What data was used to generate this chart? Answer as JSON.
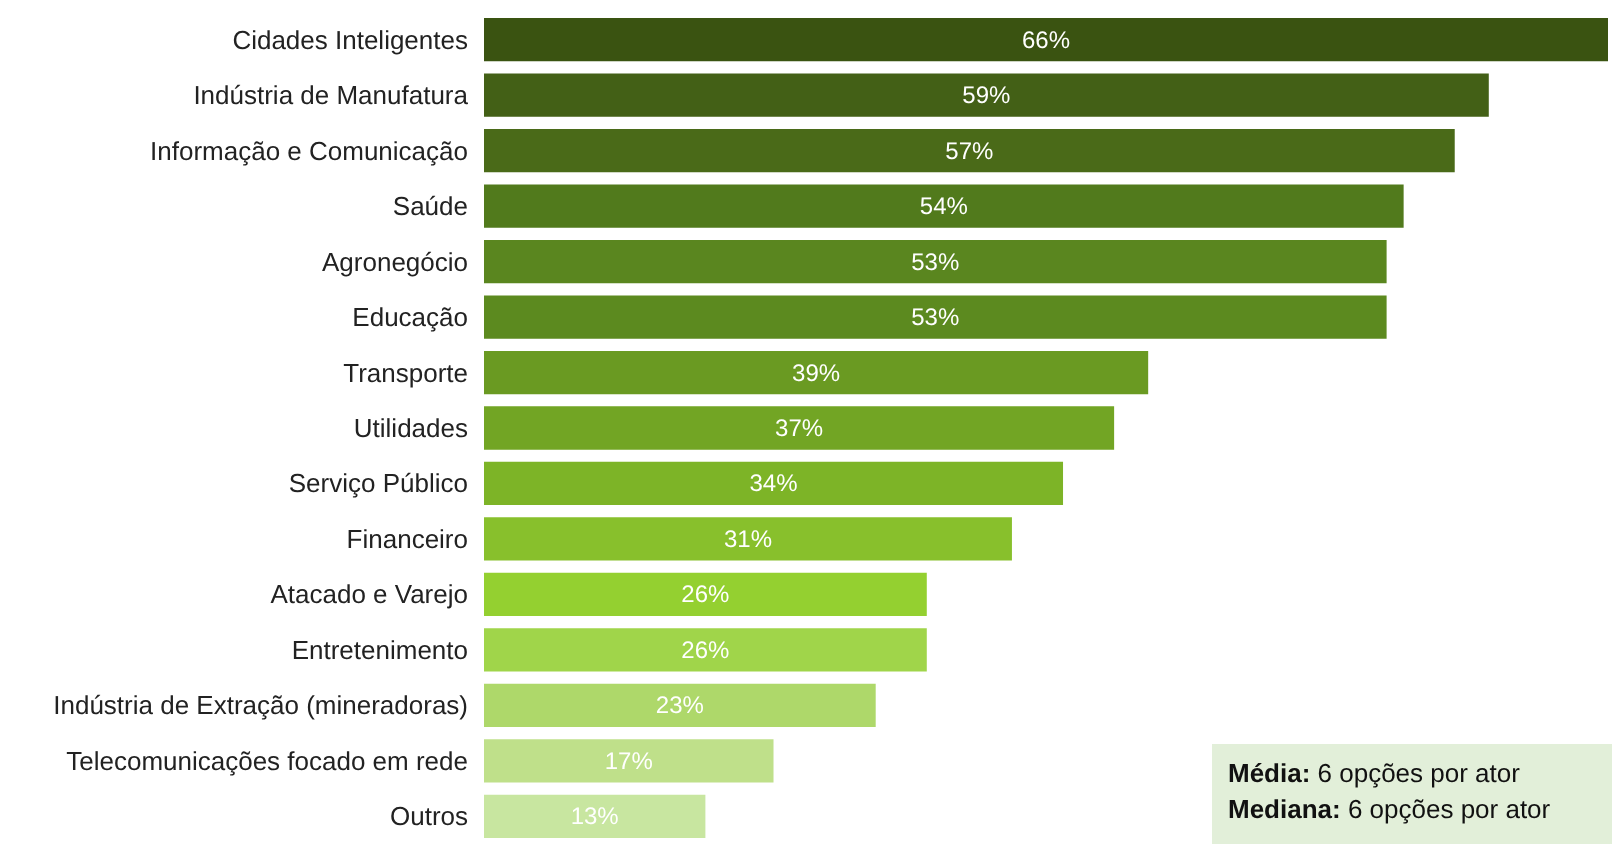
{
  "chart_data": {
    "type": "bar",
    "orientation": "horizontal",
    "categories": [
      "Cidades Inteligentes",
      "Indústria de Manufatura",
      "Informação e Comunicação",
      "Saúde",
      "Agronegócio",
      "Educação",
      "Transporte",
      "Utilidades",
      "Serviço Público",
      "Financeiro",
      "Atacado e Varejo",
      "Entretenimento",
      "Indústria de Extração (mineradoras)",
      "Telecomunicações focado em rede",
      "Outros"
    ],
    "values": [
      66,
      59,
      57,
      54,
      53,
      53,
      39,
      37,
      34,
      31,
      26,
      26,
      23,
      17,
      13
    ],
    "value_labels": [
      "66%",
      "59%",
      "57%",
      "54%",
      "53%",
      "53%",
      "39%",
      "37%",
      "34%",
      "31%",
      "26%",
      "26%",
      "23%",
      "17%",
      "13%"
    ],
    "colors": [
      "#3a5311",
      "#436016",
      "#4a6a18",
      "#517a1c",
      "#5a861f",
      "#5c8a1f",
      "#6a9a22",
      "#72a524",
      "#7db427",
      "#88c02c",
      "#94d030",
      "#a0d54a",
      "#aed86a",
      "#bfe08a",
      "#c8e6a0"
    ],
    "annotations": [
      "Média: 6 opções por ator",
      "Mediana: 6 opções por ator"
    ]
  }
}
